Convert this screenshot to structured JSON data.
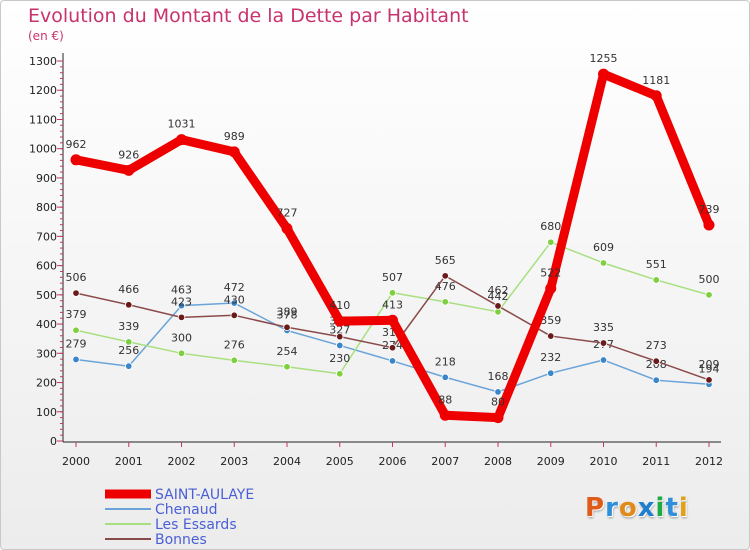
{
  "title": "Evolution du Montant de la Dette par Habitant",
  "unit": "(en €)",
  "logo": {
    "text": "Proxiti",
    "letter_colors": [
      "#e05a1a",
      "#2f8fd8",
      "#e08a1a",
      "#1e7fd0",
      "#1eaa44",
      "#2f8fd8",
      "#e0a01a"
    ]
  },
  "chart_data": {
    "type": "line",
    "x": [
      "2000",
      "2001",
      "2002",
      "2003",
      "2004",
      "2005",
      "2006",
      "2007",
      "2008",
      "2009",
      "2010",
      "2011",
      "2012"
    ],
    "ylim": [
      0,
      1300
    ],
    "yticks": [
      0,
      100,
      200,
      300,
      400,
      500,
      600,
      700,
      800,
      900,
      1000,
      1100,
      1200,
      1300
    ],
    "ytick_labels": [
      "0",
      "100",
      "200",
      "300",
      "400",
      "500",
      "600",
      "700",
      "800",
      "900",
      "1000",
      "1100",
      "1200",
      "1300"
    ],
    "grid": false,
    "legend": "bottom-left",
    "series": [
      {
        "name": "SAINT-AULAYE",
        "color": "#ee0000",
        "line_color": "#ee0000",
        "bold": true,
        "values": [
          962,
          926,
          1031,
          989,
          727,
          410,
          413,
          88,
          80,
          522,
          1255,
          1181,
          739
        ]
      },
      {
        "name": "Chenaud",
        "color": "#3b86c8",
        "line_color": "#6aa4d8",
        "bold": false,
        "values": [
          279,
          256,
          463,
          472,
          378,
          327,
          274,
          218,
          168,
          232,
          277,
          208,
          194
        ]
      },
      {
        "name": "Les Essards",
        "color": "#7fd040",
        "line_color": "#a8e080",
        "bold": false,
        "values": [
          379,
          339,
          300,
          276,
          254,
          230,
          507,
          476,
          442,
          680,
          609,
          551,
          500
        ]
      },
      {
        "name": "Bonnes",
        "color": "#6b1a1a",
        "line_color": "#8b4a4a",
        "bold": false,
        "values": [
          506,
          466,
          423,
          430,
          389,
          357,
          319,
          565,
          462,
          359,
          335,
          273,
          209
        ]
      }
    ]
  }
}
